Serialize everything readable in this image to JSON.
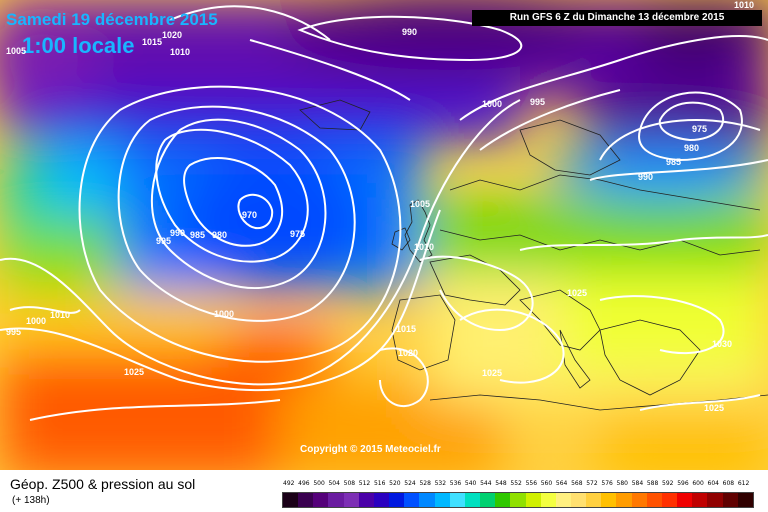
{
  "header": {
    "date": "Samedi 19 décembre 2015",
    "local_time": "1:00 locale",
    "run": "Run GFS 6 Z du Dimanche 13 décembre 2015"
  },
  "copyright": "Copyright © 2015 Meteociel.fr",
  "footer": {
    "title": "Géop. Z500 & pression au sol",
    "forecast_hours": "(+ 138h)"
  },
  "legend": {
    "values": [
      "492",
      "496",
      "500",
      "504",
      "508",
      "512",
      "516",
      "520",
      "524",
      "528",
      "532",
      "536",
      "540",
      "544",
      "548",
      "552",
      "556",
      "560",
      "564",
      "568",
      "572",
      "576",
      "580",
      "584",
      "588",
      "592",
      "596",
      "600",
      "604",
      "608",
      "612"
    ],
    "colors": [
      "#1a0017",
      "#3a0050",
      "#55007a",
      "#6a1ca0",
      "#7d2fb5",
      "#4a00a8",
      "#2a00c0",
      "#0018e0",
      "#0050ff",
      "#0088ff",
      "#00b8ff",
      "#40e0ff",
      "#00e0c0",
      "#00d070",
      "#30c800",
      "#90e000",
      "#d0f000",
      "#f4ff40",
      "#fff080",
      "#ffe070",
      "#ffd040",
      "#ffc000",
      "#ff9c00",
      "#ff7800",
      "#ff5200",
      "#ff3000",
      "#f00000",
      "#c00000",
      "#900000",
      "#600000",
      "#300000"
    ]
  },
  "isobar_labels": {
    "l990_top": "990",
    "l1000_n": "1000",
    "l995_n": "995",
    "l1005_tl": "1005",
    "l1015_tl": "1015",
    "l1020_tl": "1020",
    "l1010_tl": "1010",
    "l975_ne": "975",
    "l980_ne": "980",
    "l985_ne": "985",
    "l990_ne": "990",
    "l1010_tr": "1010",
    "l970_c": "970",
    "l975_c": "975",
    "l980_c": "980",
    "l985_c": "985",
    "l990_c": "990",
    "l995_c": "995",
    "l1000_c": "1000",
    "l1005_uk": "1005",
    "l1010_uk": "1010",
    "l1015_fr": "1015",
    "l1020_ib": "1020",
    "l1025_med": "1025",
    "l1025_eu": "1025",
    "l1030_ee": "1030",
    "l1025_se": "1025",
    "l1025_atl": "1025",
    "l995_w": "995",
    "l1000_w": "1000",
    "l1010_w": "1010"
  }
}
